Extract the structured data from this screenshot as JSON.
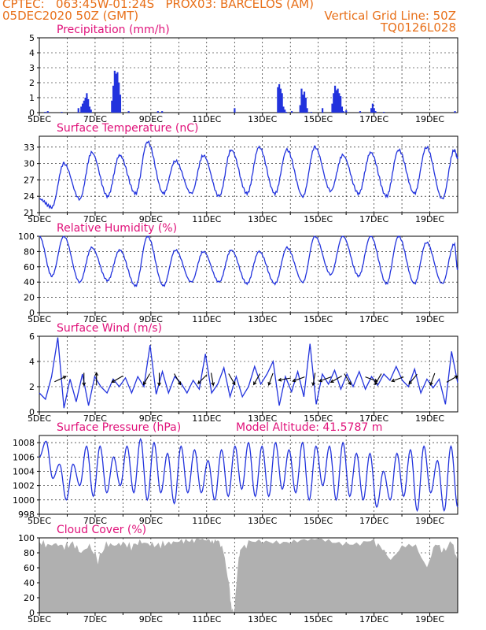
{
  "header": {
    "line1_left": "CPTEC:   063:45W-01:24S   PROX03: BARCELOS (AM)",
    "line2_left": "05DEC2020 50Z (GMT)",
    "line2_right": "Vertical Grid Line: 50Z",
    "line3_right": "TQ0126L028"
  },
  "colors": {
    "header_text": "#e8701a",
    "panel_title": "#e0127a",
    "line": "#2233dd",
    "cloud_fill": "#b0b0b0"
  },
  "chart_data": [
    {
      "type": "bar",
      "title": "Precipitation (mm/h)",
      "x_ticks": [
        "5DEC",
        "7DEC",
        "9DEC",
        "11DEC",
        "13DEC",
        "15DEC",
        "17DEC",
        "19DEC"
      ],
      "ylim": [
        0,
        5
      ],
      "y_ticks": [
        "0",
        "1",
        "2",
        "3",
        "4",
        "5"
      ],
      "x_days": [
        0.2,
        0.3,
        0.8,
        1.4,
        1.5,
        1.55,
        1.6,
        1.65,
        1.7,
        1.75,
        1.8,
        1.85,
        2.6,
        2.65,
        2.7,
        2.75,
        2.8,
        2.85,
        2.9,
        3.2,
        4.25,
        4.4,
        7.0,
        8.55,
        8.6,
        8.65,
        8.7,
        8.75,
        8.8,
        8.85,
        9.05,
        9.35,
        9.4,
        9.45,
        9.5,
        9.55,
        9.6,
        9.75,
        10.15,
        10.5,
        10.55,
        10.6,
        10.65,
        10.7,
        10.75,
        10.8,
        10.85,
        10.9,
        11.0,
        11.5,
        11.9,
        11.95,
        12.0,
        12.05,
        12.35,
        14.9
      ],
      "values": [
        0.05,
        0.1,
        0.05,
        0.3,
        0.4,
        0.6,
        0.8,
        1.0,
        1.3,
        0.9,
        0.4,
        0.2,
        0.8,
        1.8,
        2.8,
        2.6,
        2.7,
        2.0,
        1.2,
        0.1,
        0.1,
        0.1,
        0.3,
        1.7,
        1.9,
        1.6,
        1.3,
        0.4,
        0.2,
        0.05,
        0.1,
        0.5,
        1.6,
        1.2,
        1.4,
        1.0,
        0.3,
        0.05,
        0.3,
        0.6,
        1.3,
        1.8,
        1.5,
        1.6,
        1.3,
        1.1,
        0.4,
        0.1,
        0.15,
        0.1,
        0.3,
        0.6,
        0.3,
        0.1,
        0.05,
        0.1
      ],
      "grid": true
    },
    {
      "type": "line",
      "title": "Surface Temperature (nC)",
      "x_ticks": [
        "5DEC",
        "7DEC",
        "9DEC",
        "11DEC",
        "13DEC",
        "15DEC",
        "17DEC",
        "19DEC"
      ],
      "ylim": [
        21,
        35
      ],
      "y_ticks": [
        "21",
        "24",
        "27",
        "30",
        "33"
      ],
      "minima": [
        22.0,
        23.5,
        24.0,
        24.5,
        24.5,
        24.5,
        24.0,
        24.5,
        24.5,
        24.0,
        25.0,
        24.5,
        24.0,
        24.5,
        23.5
      ],
      "maxima": [
        30.0,
        32.0,
        31.5,
        34.0,
        30.5,
        31.5,
        32.5,
        33.0,
        32.5,
        33.0,
        31.5,
        32.0,
        32.5,
        33.0,
        32.5
      ],
      "start_value": 23.5,
      "end_value": 31.0,
      "grid": true
    },
    {
      "type": "line",
      "title": "Relative Humidity (%)",
      "x_ticks": [
        "5DEC",
        "7DEC",
        "9DEC",
        "11DEC",
        "13DEC",
        "15DEC",
        "17DEC",
        "19DEC"
      ],
      "ylim": [
        0,
        100
      ],
      "y_ticks": [
        "0",
        "20",
        "40",
        "60",
        "80",
        "100"
      ],
      "minima": [
        48,
        40,
        42,
        35,
        35,
        40,
        40,
        38,
        38,
        40,
        50,
        48,
        38,
        38,
        38
      ],
      "maxima": [
        100,
        85,
        82,
        100,
        82,
        80,
        82,
        80,
        85,
        100,
        100,
        100,
        100,
        92,
        90
      ],
      "start_value": 100,
      "end_value": 56,
      "grid": true
    },
    {
      "type": "line",
      "title": "Surface Wind (m/s)",
      "x_ticks": [
        "5DEC",
        "7DEC",
        "9DEC",
        "11DEC",
        "13DEC",
        "15DEC",
        "17DEC",
        "19DEC"
      ],
      "ylim": [
        0,
        6
      ],
      "y_ticks": [
        "0",
        "2",
        "4",
        "6"
      ],
      "speed": [
        1.5,
        1.0,
        2.8,
        5.9,
        0.3,
        2.6,
        0.8,
        3.0,
        0.5,
        2.8,
        2.0,
        1.5,
        2.6,
        2.0,
        2.7,
        1.5,
        2.8,
        2.0,
        5.3,
        1.4,
        3.2,
        1.5,
        2.8,
        2.3,
        1.5,
        2.5,
        1.8,
        4.6,
        1.5,
        2.2,
        3.5,
        1.2,
        2.8,
        1.2,
        2.0,
        3.6,
        2.2,
        3.0,
        4.0,
        0.5,
        2.8,
        1.6,
        3.2,
        1.2,
        5.4,
        0.6,
        3.0,
        2.2,
        3.3,
        1.8,
        3.0,
        2.0,
        3.2,
        1.8,
        2.8,
        2.1,
        3.0,
        2.5,
        3.6,
        2.5,
        2.0,
        3.4,
        1.5,
        2.6,
        1.9,
        2.6,
        0.6,
        4.8,
        2.3
      ],
      "arrows": [
        {
          "day": 0.75,
          "dir": 25
        },
        {
          "day": 1.6,
          "dir": 270
        },
        {
          "day": 2.05,
          "dir": 90
        },
        {
          "day": 2.8,
          "dir": 210
        },
        {
          "day": 3.85,
          "dir": 240
        },
        {
          "day": 4.3,
          "dir": 270
        },
        {
          "day": 4.95,
          "dir": 300
        },
        {
          "day": 5.85,
          "dir": 225
        },
        {
          "day": 6.2,
          "dir": 280
        },
        {
          "day": 6.9,
          "dir": 300
        },
        {
          "day": 7.8,
          "dir": 240
        },
        {
          "day": 8.3,
          "dir": 250
        },
        {
          "day": 8.8,
          "dir": 190
        },
        {
          "day": 9.3,
          "dir": 200
        },
        {
          "day": 9.85,
          "dir": 260
        },
        {
          "day": 10.25,
          "dir": 200
        },
        {
          "day": 10.65,
          "dir": 210
        },
        {
          "day": 11.05,
          "dir": 300
        },
        {
          "day": 11.9,
          "dir": 340
        },
        {
          "day": 12.15,
          "dir": 240
        },
        {
          "day": 12.85,
          "dir": 200
        },
        {
          "day": 13.4,
          "dir": 230
        },
        {
          "day": 14.1,
          "dir": 250
        },
        {
          "day": 14.8,
          "dir": 30
        }
      ],
      "grid": true
    },
    {
      "type": "line",
      "title": "Surface Pressure (hPa)",
      "annotation": "Model Altitude: 41.5787 m",
      "x_ticks": [
        "5DEC",
        "7DEC",
        "9DEC",
        "11DEC",
        "13DEC",
        "15DEC",
        "17DEC",
        "19DEC"
      ],
      "ylim": [
        998,
        1009
      ],
      "y_ticks": [
        "998",
        "1000",
        "1002",
        "1004",
        "1006",
        "1008"
      ],
      "extremes": [
        1006,
        1008.2,
        1003,
        1005,
        1000,
        1005,
        1002,
        1007.5,
        1000.5,
        1007.5,
        1001,
        1006,
        1002,
        1007.5,
        1001,
        1008.5,
        1000,
        1008,
        1001,
        1006.5,
        999.5,
        1007.5,
        1001,
        1007,
        1001,
        1005.5,
        1000,
        1007,
        1000.5,
        1007.5,
        1001.5,
        1008,
        1000.5,
        1007.5,
        1000.5,
        1008,
        1001.5,
        1007,
        1001,
        1008,
        1000,
        1007.5,
        1002,
        1007.5,
        1000,
        1008,
        1000.5,
        1006.5,
        1000,
        1006.5,
        999,
        1004,
        1000,
        1006.5,
        1000.5,
        1007,
        998.5,
        1007.5,
        1001,
        1005.5,
        998.5,
        1007.5,
        999
      ],
      "grid": true
    },
    {
      "type": "area",
      "title": "Cloud Cover (%)",
      "x_ticks": [
        "5DEC",
        "7DEC",
        "9DEC",
        "11DEC",
        "13DEC",
        "15DEC",
        "17DEC",
        "19DEC"
      ],
      "ylim": [
        0,
        100
      ],
      "y_ticks": [
        "0",
        "20",
        "40",
        "60",
        "80",
        "100"
      ],
      "x_days": [
        0,
        0.3,
        0.6,
        0.9,
        1.2,
        1.5,
        1.8,
        2.1,
        2.4,
        2.7,
        3.0,
        3.3,
        3.6,
        3.9,
        4.2,
        4.5,
        4.8,
        5.1,
        5.4,
        5.7,
        6.0,
        6.2,
        6.4,
        6.6,
        6.8,
        6.9,
        7.0,
        7.1,
        7.2,
        7.5,
        8.0,
        8.5,
        9.0,
        9.5,
        10.0,
        10.5,
        11.0,
        11.5,
        12.0,
        12.3,
        12.6,
        13.0,
        13.5,
        13.9,
        14.2,
        14.5,
        14.8,
        15.0
      ],
      "values": [
        95,
        90,
        92,
        88,
        93,
        80,
        90,
        70,
        92,
        90,
        93,
        88,
        95,
        92,
        90,
        92,
        94,
        96,
        97,
        100,
        97,
        92,
        96,
        85,
        40,
        2,
        5,
        55,
        85,
        92,
        95,
        97,
        96,
        95,
        97,
        96,
        95,
        92,
        95,
        86,
        70,
        92,
        93,
        60,
        93,
        82,
        96,
        70
      ],
      "grid": true
    }
  ]
}
